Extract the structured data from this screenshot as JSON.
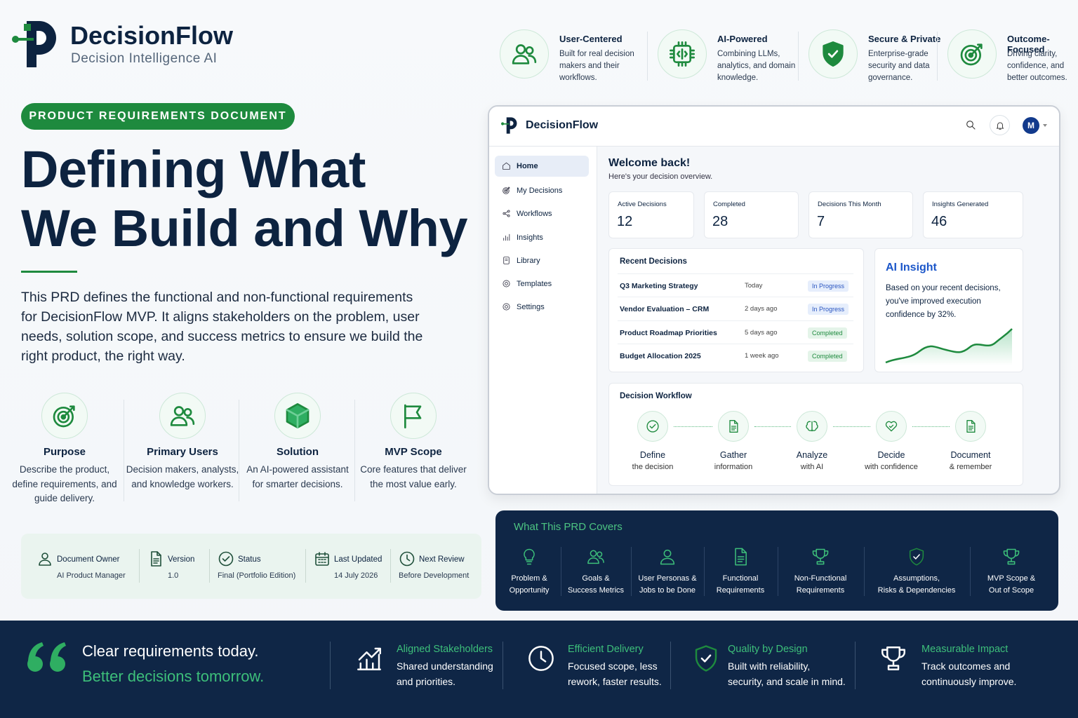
{
  "brand": {
    "name": "DecisionFlow",
    "tagline": "Decision Intelligence AI"
  },
  "features": [
    {
      "title": "User-Centered",
      "text": "Built for real decision makers and their workflows."
    },
    {
      "title": "AI-Powered",
      "text": "Combining LLMs, analytics, and domain knowledge."
    },
    {
      "title": "Secure & Private",
      "text": "Enterprise-grade security and data governance."
    },
    {
      "title": "Outcome-Focused",
      "text": "Driving clarity, confidence, and better outcomes."
    }
  ],
  "badge": "PRODUCT REQUIREMENTS DOCUMENT",
  "headline": [
    "Defining What",
    "We Build and Why"
  ],
  "intro": "This PRD defines the functional and non-functional requirements for DecisionFlow MVP. It aligns stakeholders on the problem, user needs, solution scope, and success metrics to ensure we build the right product, the right way.",
  "pillars": [
    {
      "title": "Purpose",
      "text": "Describe the product, define requirements, and guide delivery."
    },
    {
      "title": "Primary Users",
      "text": "Decision makers, analysts, and knowledge workers."
    },
    {
      "title": "Solution",
      "text": "An AI-powered assistant for smarter decisions."
    },
    {
      "title": "MVP Scope",
      "text": "Core features that deliver the most value early."
    }
  ],
  "meta": [
    {
      "label": "Document Owner",
      "value": "AI Product Manager"
    },
    {
      "label": "Version",
      "value": "1.0"
    },
    {
      "label": "Status",
      "value": "Final (Portfolio Edition)"
    },
    {
      "label": "Last Updated",
      "value": "14 July 2026"
    },
    {
      "label": "Next Review",
      "value": "Before Development"
    }
  ],
  "app": {
    "brand": "DecisionFlow",
    "avatar": "M",
    "nav": [
      "Home",
      "My Decisions",
      "Workflows",
      "Insights",
      "Library",
      "Templates",
      "Settings"
    ],
    "welcome": "Welcome back!",
    "subtitle": "Here's your decision overview.",
    "stats": [
      {
        "label": "Active Decisions",
        "value": 12
      },
      {
        "label": "Completed",
        "value": 28
      },
      {
        "label": "Decisions This Month",
        "value": 7
      },
      {
        "label": "Insights Generated",
        "value": 46
      }
    ],
    "recent": {
      "title": "Recent Decisions",
      "rows": [
        {
          "name": "Q3 Marketing Strategy",
          "when": "Today",
          "status": "In Progress"
        },
        {
          "name": "Vendor Evaluation – CRM",
          "when": "2 days ago",
          "status": "In Progress"
        },
        {
          "name": "Product Roadmap Priorities",
          "when": "5 days ago",
          "status": "Completed"
        },
        {
          "name": "Budget Allocation 2025",
          "when": "1 week ago",
          "status": "Completed"
        }
      ]
    },
    "insight": {
      "title": "AI Insight",
      "text": "Based on your recent decisions, you've improved execution confidence by 32%."
    },
    "workflow": {
      "title": "Decision Workflow",
      "steps": [
        {
          "title": "Define",
          "sub": "the decision"
        },
        {
          "title": "Gather",
          "sub": "information"
        },
        {
          "title": "Analyze",
          "sub": "with AI"
        },
        {
          "title": "Decide",
          "sub": "with confidence"
        },
        {
          "title": "Document",
          "sub": "& remember"
        }
      ]
    }
  },
  "covers": {
    "title": "What This PRD Covers",
    "items": [
      [
        "Problem &",
        "Opportunity"
      ],
      [
        "Goals &",
        "Success Metrics"
      ],
      [
        "User Personas &",
        "Jobs to be Done"
      ],
      [
        "Functional",
        "Requirements"
      ],
      [
        "Non-Functional",
        "Requirements"
      ],
      [
        "Assumptions,",
        "Risks & Dependencies"
      ],
      [
        "MVP Scope &",
        "Out of Scope"
      ]
    ]
  },
  "footer": {
    "quote": [
      "Clear requirements today.",
      "Better decisions tomorrow."
    ],
    "items": [
      {
        "title": "Aligned Stakeholders",
        "text": "Shared understanding and priorities."
      },
      {
        "title": "Efficient Delivery",
        "text": "Focused scope, less rework, faster results."
      },
      {
        "title": "Quality by Design",
        "text": "Built with reliability, security, and scale in mind."
      },
      {
        "title": "Measurable Impact",
        "text": "Track outcomes and continuously improve."
      }
    ]
  }
}
